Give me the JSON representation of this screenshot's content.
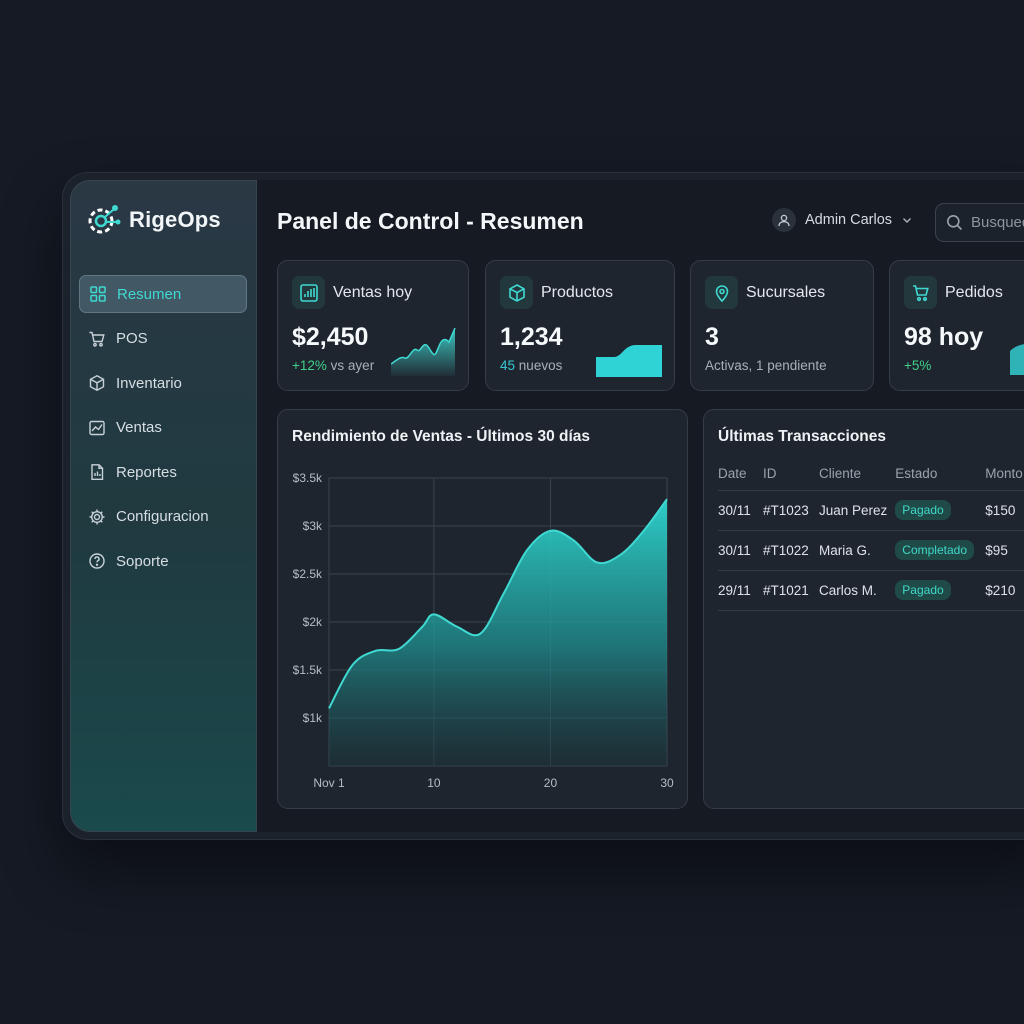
{
  "app": {
    "name": "RigeOps"
  },
  "sidebar": {
    "items": [
      {
        "label": "Resumen",
        "icon": "grid-icon",
        "active": true
      },
      {
        "label": "POS",
        "icon": "cart-icon"
      },
      {
        "label": "Inventario",
        "icon": "box-icon"
      },
      {
        "label": "Ventas",
        "icon": "chart-icon"
      },
      {
        "label": "Reportes",
        "icon": "file-icon"
      },
      {
        "label": "Configuracion",
        "icon": "gear-icon"
      },
      {
        "label": "Soporte",
        "icon": "help-icon"
      }
    ]
  },
  "header": {
    "title": "Panel de Control - Resumen",
    "user": "Admin Carlos",
    "search_placeholder": "Busqueda"
  },
  "cards": [
    {
      "title": "Ventas hoy",
      "value": "$2,450",
      "sub_highlight": "+12%",
      "sub_rest": "vs ayer",
      "icon": "bar-chart-icon"
    },
    {
      "title": "Productos",
      "value": "1,234",
      "sub_highlight": "45",
      "sub_rest": "nuevos",
      "icon": "box-icon"
    },
    {
      "title": "Sucursales",
      "value": "3",
      "sub_highlight": "",
      "sub_rest": "Activas, 1 pendiente",
      "icon": "map-pin-icon"
    },
    {
      "title": "Pedidos",
      "value": "98 hoy",
      "sub_highlight": "+5%",
      "sub_rest": "",
      "icon": "cart-icon"
    }
  ],
  "chart_data": {
    "type": "area",
    "title": "Rendimiento de Ventas - Últimos 30 días",
    "x": [
      1,
      3,
      5,
      7,
      9,
      10,
      12,
      14,
      16,
      18,
      20,
      22,
      24,
      26,
      28,
      30
    ],
    "values": [
      1100,
      1550,
      1700,
      1720,
      1950,
      2080,
      1950,
      1880,
      2300,
      2750,
      2950,
      2850,
      2620,
      2700,
      2950,
      3280
    ],
    "xticks": [
      1,
      10,
      20,
      30
    ],
    "xtick_labels": [
      "Nov 1",
      "10",
      "20",
      "30"
    ],
    "yticks": [
      1000,
      1500,
      2000,
      2500,
      3000,
      3500
    ],
    "ytick_labels": [
      "$1k",
      "$1.5k",
      "$2k",
      "$2.5k",
      "$3k",
      "$3.5k"
    ],
    "xlim": [
      1,
      30
    ],
    "ylim": [
      500,
      3500
    ],
    "grid": true,
    "color": "#3fd9d2"
  },
  "transactions": {
    "title": "Últimas Transacciones",
    "columns": [
      "Date",
      "ID",
      "Cliente",
      "Estado",
      "Monto"
    ],
    "rows": [
      {
        "date": "30/11",
        "id": "#T1023",
        "cliente": "Juan Perez",
        "estado": "Pagado",
        "monto": "$150"
      },
      {
        "date": "30/11",
        "id": "#T1022",
        "cliente": "Maria G.",
        "estado": "Completado",
        "monto": "$95"
      },
      {
        "date": "29/11",
        "id": "#T1021",
        "cliente": "Carlos M.",
        "estado": "Pagado",
        "monto": "$210"
      }
    ]
  }
}
